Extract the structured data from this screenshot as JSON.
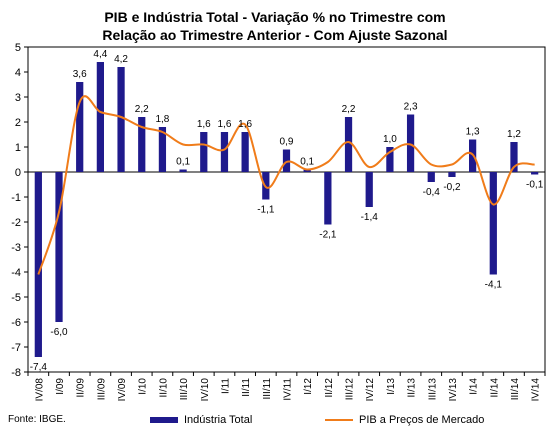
{
  "chart_data": {
    "type": "bar",
    "title_line1": "PIB e Indústria Total - Variação % no Trimestre com",
    "title_line2": "Relação ao Trimestre Anterior - Com Ajuste Sazonal",
    "categories": [
      "IV/08",
      "I/09",
      "II/09",
      "III/09",
      "IV/09",
      "I/10",
      "II/10",
      "III/10",
      "IV/10",
      "I/11",
      "II/11",
      "III/11",
      "IV/11",
      "I/12",
      "II/12",
      "III/12",
      "IV/12",
      "I/13",
      "II/13",
      "III/13",
      "IV/13",
      "I/14",
      "II/14",
      "III/14",
      "IV/14"
    ],
    "ylim": [
      -8,
      5
    ],
    "yticks": [
      5,
      4,
      3,
      2,
      1,
      0,
      -1,
      -2,
      -3,
      -4,
      -5,
      -6,
      -7,
      -8
    ],
    "grid": false,
    "legend_position": "bottom",
    "series": [
      {
        "name": "Indústria Total",
        "type": "bar",
        "color": "#1f1a8c",
        "values": [
          -7.4,
          -6.0,
          3.6,
          4.4,
          4.2,
          2.2,
          1.8,
          0.1,
          1.6,
          1.6,
          1.6,
          -1.1,
          0.9,
          0.1,
          -2.1,
          2.2,
          -1.4,
          1.0,
          2.3,
          -0.4,
          -0.2,
          1.3,
          -4.1,
          1.2,
          -0.1
        ],
        "labels": [
          "-7,4",
          "-6,0",
          "3,6",
          "4,4",
          "4,2",
          "2,2",
          "1,8",
          "0,1",
          "1,6",
          "1,6",
          "1,6",
          "-1,1",
          "0,9",
          "0,1",
          "-2,1",
          "2,2",
          "-1,4",
          "1,0",
          "2,3",
          "-0,4",
          "-0,2",
          "1,3",
          "-4,1",
          "1,2",
          "-0,1"
        ]
      },
      {
        "name": "PIB a Preços de Mercado",
        "type": "line",
        "color": "#f07c1a",
        "values": [
          -4.1,
          -1.6,
          2.8,
          2.4,
          2.2,
          1.8,
          1.6,
          1.1,
          1.1,
          0.9,
          1.9,
          -0.6,
          0.4,
          0.1,
          0.4,
          1.2,
          0.2,
          0.8,
          1.1,
          0.3,
          0.3,
          0.7,
          -1.3,
          0.2,
          0.3
        ]
      }
    ]
  },
  "footer": {
    "source": "Fonte: IBGE."
  }
}
